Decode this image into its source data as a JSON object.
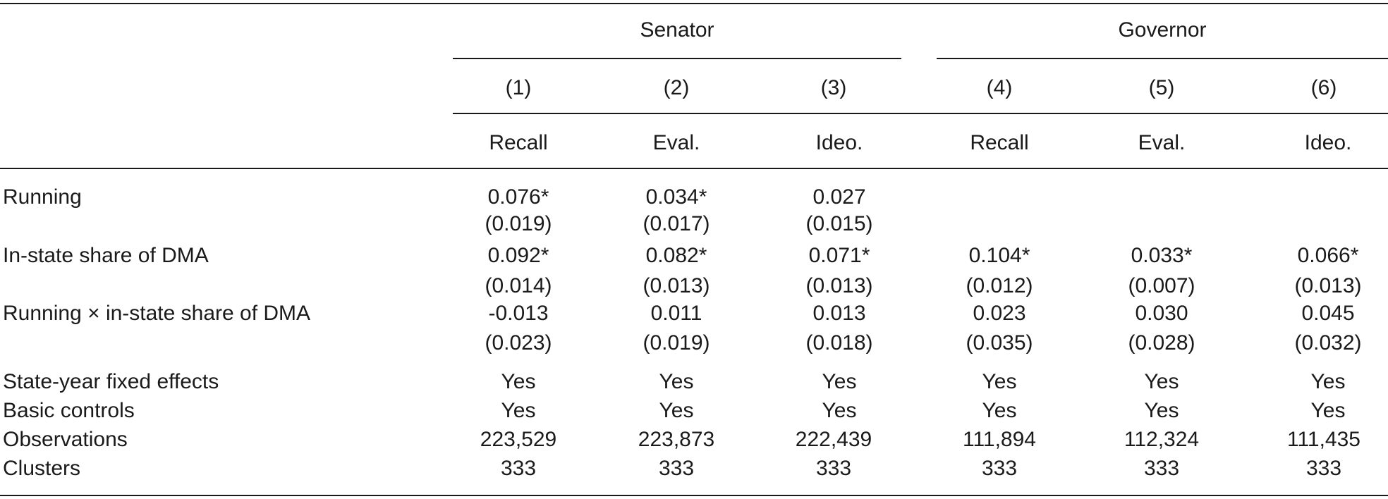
{
  "groups": {
    "senator": "Senator",
    "governor": "Governor"
  },
  "columns": {
    "numbers": [
      "(1)",
      "(2)",
      "(3)",
      "(4)",
      "(5)",
      "(6)"
    ],
    "outcomes": [
      "Recall",
      "Eval.",
      "Ideo.",
      "Recall",
      "Eval.",
      "Ideo."
    ]
  },
  "rows": [
    {
      "label": "Running",
      "estimates": [
        "0.076*",
        "0.034*",
        "0.027",
        "",
        "",
        ""
      ],
      "std_errors": [
        "(0.019)",
        "(0.017)",
        "(0.015)",
        "",
        "",
        ""
      ]
    },
    {
      "label": "In-state share of DMA",
      "estimates": [
        "0.092*",
        "0.082*",
        "0.071*",
        "0.104*",
        "0.033*",
        "0.066*"
      ],
      "std_errors": [
        "(0.014)",
        "(0.013)",
        "(0.013)",
        "(0.012)",
        "(0.007)",
        "(0.013)"
      ]
    },
    {
      "label": "Running × in-state share of DMA",
      "estimates": [
        "-0.013",
        "0.011",
        "0.013",
        "0.023",
        "0.030",
        "0.045"
      ],
      "std_errors": [
        "(0.023)",
        "(0.019)",
        "(0.018)",
        "(0.035)",
        "(0.028)",
        "(0.032)"
      ]
    }
  ],
  "footer_rows": [
    {
      "label": "State-year fixed effects",
      "values": [
        "Yes",
        "Yes",
        "Yes",
        "Yes",
        "Yes",
        "Yes"
      ]
    },
    {
      "label": "Basic controls",
      "values": [
        "Yes",
        "Yes",
        "Yes",
        "Yes",
        "Yes",
        "Yes"
      ]
    },
    {
      "label": "Observations",
      "values": [
        "223,529",
        "223,873",
        "222,439",
        "111,894",
        "112,324",
        "111,435"
      ]
    },
    {
      "label": "Clusters",
      "values": [
        "333",
        "333",
        "333",
        "333",
        "333",
        "333"
      ]
    }
  ]
}
